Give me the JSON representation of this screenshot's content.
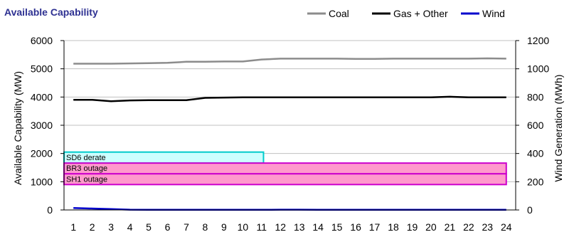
{
  "chart_data": {
    "type": "line",
    "title": "Available Capability",
    "ylabel": "Available Capability (MW)",
    "y2label": "Wind Generation (MWh)",
    "x": [
      1,
      2,
      3,
      4,
      5,
      6,
      7,
      8,
      9,
      10,
      11,
      12,
      13,
      14,
      15,
      16,
      17,
      18,
      19,
      20,
      21,
      22,
      23,
      24
    ],
    "ylim": [
      0,
      6000
    ],
    "y2lim": [
      0,
      1200
    ],
    "yticks": [
      0,
      1000,
      2000,
      3000,
      4000,
      5000,
      6000
    ],
    "y2ticks": [
      0,
      200,
      400,
      600,
      800,
      1000,
      1200
    ],
    "legend_position": "top-right",
    "grid": true,
    "series": [
      {
        "name": "Coal",
        "axis": "left",
        "color": "#8c8c8c",
        "values": [
          5180,
          5180,
          5180,
          5190,
          5200,
          5210,
          5250,
          5250,
          5260,
          5260,
          5330,
          5360,
          5360,
          5360,
          5360,
          5350,
          5350,
          5360,
          5360,
          5360,
          5360,
          5360,
          5370,
          5360
        ]
      },
      {
        "name": "Gas + Other",
        "axis": "left",
        "color": "#000000",
        "values": [
          3900,
          3900,
          3850,
          3880,
          3890,
          3890,
          3890,
          3970,
          3980,
          3990,
          3990,
          3990,
          3990,
          3990,
          3990,
          3990,
          3990,
          3990,
          3990,
          3990,
          4010,
          3990,
          3990,
          3990
        ]
      },
      {
        "name": "Wind",
        "axis": "right",
        "color": "#0000cc",
        "values": [
          14,
          10,
          6,
          2,
          1,
          1,
          1,
          1,
          1,
          1,
          1,
          2,
          2,
          1,
          1,
          1,
          1,
          1,
          1,
          1,
          1,
          1,
          1,
          1
        ]
      }
    ],
    "outages": [
      {
        "label": "SD6 derate",
        "from": 1,
        "to": 11.6,
        "low": 1660,
        "high": 2050,
        "fill": "#ccffff",
        "stroke": "#00cccc"
      },
      {
        "label": "BR3 outage",
        "from": 1,
        "to": 24.5,
        "low": 1280,
        "high": 1660,
        "fill": "#ff99cc",
        "stroke": "#cc00cc"
      },
      {
        "label": "SH1 outage",
        "from": 1,
        "to": 24.5,
        "low": 900,
        "high": 1280,
        "fill": "#ff99cc",
        "stroke": "#cc00cc"
      }
    ]
  }
}
